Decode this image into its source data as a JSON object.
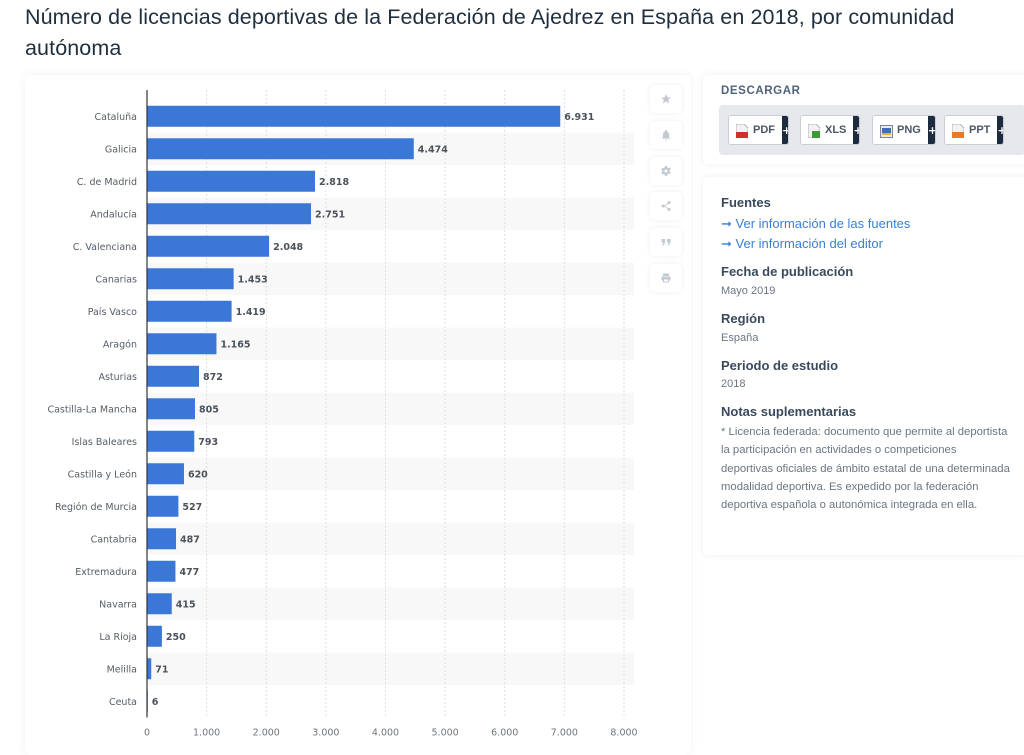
{
  "page": {
    "title": "Número de licencias deportivas de la Federación de Ajedrez en España en 2018, por comunidad autónoma"
  },
  "toolbar": {
    "buttons": [
      {
        "name": "favorite",
        "icon": "star-icon"
      },
      {
        "name": "notify",
        "icon": "bell-icon"
      },
      {
        "name": "settings",
        "icon": "gear-icon"
      },
      {
        "name": "share",
        "icon": "share-icon"
      },
      {
        "name": "cite",
        "icon": "quote-icon"
      },
      {
        "name": "print",
        "icon": "print-icon"
      }
    ]
  },
  "download": {
    "title": "DESCARGAR",
    "buttons": [
      {
        "label": "PDF",
        "icon": "pdf-file-icon",
        "color": "#d0312d"
      },
      {
        "label": "XLS",
        "icon": "xls-file-icon",
        "color": "#3d9b35"
      },
      {
        "label": "PNG",
        "icon": "png-image-icon",
        "color": "#3b6fb6"
      },
      {
        "label": "PPT",
        "icon": "ppt-file-icon",
        "color": "#e8782a"
      }
    ],
    "plus_label": "+"
  },
  "info": {
    "sources_heading": "Fuentes",
    "sources_link": "Ver información de las fuentes",
    "editor_link": "Ver información del editor",
    "link_arrow": "➞",
    "pub_date_heading": "Fecha de publicación",
    "pub_date": "Mayo 2019",
    "region_heading": "Región",
    "region": "España",
    "period_heading": "Periodo de estudio",
    "period": "2018",
    "notes_heading": "Notas suplementarias",
    "notes": "* Licencia federada: documento que permite al deportista la participación en actividades o competiciones deportivas oficiales de ámbito estatal de una determinada modalidad deportiva. Es expedido por la federación deportiva española o autonómica integrada en ella."
  },
  "colors": {
    "bar": "#3a77d6",
    "stripe": "#f8f8f9",
    "link": "#3a80d0"
  },
  "chart_data": {
    "type": "bar",
    "orientation": "horizontal",
    "title": "Número de licencias deportivas de la Federación de Ajedrez en España en 2018, por comunidad autónoma",
    "xlabel": "",
    "ylabel": "",
    "categories": [
      "Cataluña",
      "Galicia",
      "C. de Madrid",
      "Andalucía",
      "C. Valenciana",
      "Canarias",
      "País Vasco",
      "Aragón",
      "Asturias",
      "Castilla-La Mancha",
      "Islas Baleares",
      "Castilla y León",
      "Región de Murcia",
      "Cantabria",
      "Extremadura",
      "Navarra",
      "La Rioja",
      "Melilla",
      "Ceuta"
    ],
    "values": [
      6931,
      4474,
      2818,
      2751,
      2048,
      1453,
      1419,
      1165,
      872,
      805,
      793,
      620,
      527,
      487,
      477,
      415,
      250,
      71,
      6
    ],
    "value_labels": [
      "6.931",
      "4.474",
      "2.818",
      "2.751",
      "2.048",
      "1.453",
      "1.419",
      "1.165",
      "872",
      "805",
      "793",
      "620",
      "527",
      "487",
      "477",
      "415",
      "250",
      "71",
      "6"
    ],
    "xlim": [
      0,
      8000
    ],
    "xticks": [
      0,
      1000,
      2000,
      3000,
      4000,
      5000,
      6000,
      7000,
      8000
    ],
    "xtick_labels": [
      "0",
      "1.000",
      "2.000",
      "3.000",
      "4.000",
      "5.000",
      "6.000",
      "7.000",
      "8.000"
    ],
    "grid": true,
    "legend": "none"
  }
}
